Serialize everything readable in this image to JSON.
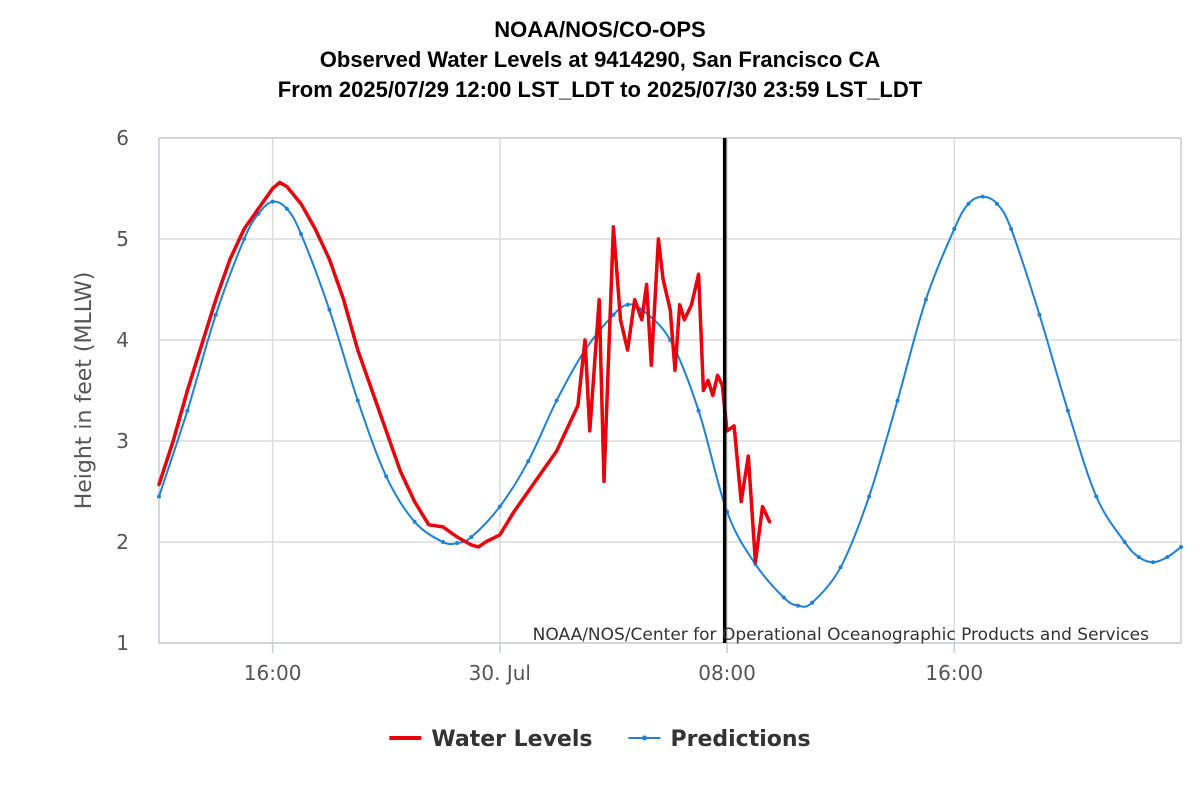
{
  "chart_data": {
    "type": "line",
    "title": [
      "NOAA/NOS/CO-OPS",
      "Observed Water Levels at 9414290, San Francisco CA",
      "From 2025/07/29 12:00 LST_LDT to 2025/07/30 23:59 LST_LDT"
    ],
    "ylabel": "Height in feet (MLLW)",
    "ylim": [
      1,
      6
    ],
    "yticks": [
      "1",
      "2",
      "3",
      "4",
      "5",
      "6"
    ],
    "xlim": [
      "2025-07-29 12:00",
      "2025-07-30 23:59"
    ],
    "xticks": [
      {
        "t": "2025-07-29 16:00",
        "label": "16:00"
      },
      {
        "t": "2025-07-30 00:00",
        "label": "30. Jul"
      },
      {
        "t": "2025-07-30 08:00",
        "label": "08:00"
      },
      {
        "t": "2025-07-30 16:00",
        "label": "16:00"
      }
    ],
    "grid": true,
    "legend_position": "bottom-center",
    "credit": "NOAA/NOS/Center for Operational Oceanographic Products and Services",
    "current_time_marker": "2025-07-30 07:55",
    "series": [
      {
        "name": "Water Levels",
        "color": "#e8000b",
        "style": "line",
        "points": [
          [
            "2025-07-29 12:00",
            2.57
          ],
          [
            "2025-07-29 12:30",
            3.0
          ],
          [
            "2025-07-29 13:00",
            3.5
          ],
          [
            "2025-07-29 13:30",
            3.95
          ],
          [
            "2025-07-29 14:00",
            4.4
          ],
          [
            "2025-07-29 14:30",
            4.8
          ],
          [
            "2025-07-29 15:00",
            5.1
          ],
          [
            "2025-07-29 15:30",
            5.3
          ],
          [
            "2025-07-29 16:00",
            5.5
          ],
          [
            "2025-07-29 16:15",
            5.56
          ],
          [
            "2025-07-29 16:30",
            5.52
          ],
          [
            "2025-07-29 17:00",
            5.35
          ],
          [
            "2025-07-29 17:30",
            5.1
          ],
          [
            "2025-07-29 18:00",
            4.8
          ],
          [
            "2025-07-29 18:30",
            4.4
          ],
          [
            "2025-07-29 19:00",
            3.9
          ],
          [
            "2025-07-29 19:30",
            3.5
          ],
          [
            "2025-07-29 20:00",
            3.1
          ],
          [
            "2025-07-29 20:30",
            2.7
          ],
          [
            "2025-07-29 21:00",
            2.4
          ],
          [
            "2025-07-29 21:30",
            2.17
          ],
          [
            "2025-07-29 22:00",
            2.15
          ],
          [
            "2025-07-29 22:30",
            2.05
          ],
          [
            "2025-07-29 23:00",
            1.97
          ],
          [
            "2025-07-29 23:15",
            1.95
          ],
          [
            "2025-07-29 23:30",
            2.0
          ],
          [
            "2025-07-30 00:00",
            2.07
          ],
          [
            "2025-07-30 00:30",
            2.3
          ],
          [
            "2025-07-30 01:00",
            2.5
          ],
          [
            "2025-07-30 01:30",
            2.7
          ],
          [
            "2025-07-30 02:00",
            2.9
          ],
          [
            "2025-07-30 02:30",
            3.2
          ],
          [
            "2025-07-30 02:45",
            3.35
          ],
          [
            "2025-07-30 03:00",
            4.0
          ],
          [
            "2025-07-30 03:10",
            3.1
          ],
          [
            "2025-07-30 03:30",
            4.4
          ],
          [
            "2025-07-30 03:40",
            2.6
          ],
          [
            "2025-07-30 04:00",
            5.12
          ],
          [
            "2025-07-30 04:15",
            4.2
          ],
          [
            "2025-07-30 04:30",
            3.9
          ],
          [
            "2025-07-30 04:45",
            4.4
          ],
          [
            "2025-07-30 05:00",
            4.2
          ],
          [
            "2025-07-30 05:10",
            4.55
          ],
          [
            "2025-07-30 05:20",
            3.75
          ],
          [
            "2025-07-30 05:35",
            5.0
          ],
          [
            "2025-07-30 05:45",
            4.6
          ],
          [
            "2025-07-30 06:00",
            4.3
          ],
          [
            "2025-07-30 06:10",
            3.7
          ],
          [
            "2025-07-30 06:20",
            4.35
          ],
          [
            "2025-07-30 06:30",
            4.2
          ],
          [
            "2025-07-30 06:45",
            4.35
          ],
          [
            "2025-07-30 07:00",
            4.65
          ],
          [
            "2025-07-30 07:10",
            3.5
          ],
          [
            "2025-07-30 07:20",
            3.6
          ],
          [
            "2025-07-30 07:30",
            3.45
          ],
          [
            "2025-07-30 07:40",
            3.65
          ],
          [
            "2025-07-30 07:50",
            3.55
          ],
          [
            "2025-07-30 08:00",
            3.1
          ],
          [
            "2025-07-30 08:15",
            3.15
          ],
          [
            "2025-07-30 08:30",
            2.4
          ],
          [
            "2025-07-30 08:45",
            2.85
          ],
          [
            "2025-07-30 09:00",
            1.8
          ],
          [
            "2025-07-30 09:15",
            2.35
          ],
          [
            "2025-07-30 09:30",
            2.2
          ]
        ]
      },
      {
        "name": "Predictions",
        "color": "#2080d8",
        "style": "line-markers",
        "points": [
          [
            "2025-07-29 12:00",
            2.45
          ],
          [
            "2025-07-29 13:00",
            3.3
          ],
          [
            "2025-07-29 14:00",
            4.25
          ],
          [
            "2025-07-29 15:00",
            5.0
          ],
          [
            "2025-07-29 15:30",
            5.25
          ],
          [
            "2025-07-29 16:00",
            5.37
          ],
          [
            "2025-07-29 16:30",
            5.3
          ],
          [
            "2025-07-29 17:00",
            5.05
          ],
          [
            "2025-07-29 18:00",
            4.3
          ],
          [
            "2025-07-29 19:00",
            3.4
          ],
          [
            "2025-07-29 20:00",
            2.65
          ],
          [
            "2025-07-29 21:00",
            2.2
          ],
          [
            "2025-07-29 22:00",
            2.0
          ],
          [
            "2025-07-29 22:30",
            1.99
          ],
          [
            "2025-07-29 23:00",
            2.05
          ],
          [
            "2025-07-30 00:00",
            2.35
          ],
          [
            "2025-07-30 01:00",
            2.8
          ],
          [
            "2025-07-30 02:00",
            3.4
          ],
          [
            "2025-07-30 03:00",
            3.9
          ],
          [
            "2025-07-30 04:00",
            4.25
          ],
          [
            "2025-07-30 04:30",
            4.35
          ],
          [
            "2025-07-30 05:00",
            4.3
          ],
          [
            "2025-07-30 06:00",
            4.0
          ],
          [
            "2025-07-30 07:00",
            3.3
          ],
          [
            "2025-07-30 08:00",
            2.3
          ],
          [
            "2025-07-30 09:00",
            1.78
          ],
          [
            "2025-07-30 10:00",
            1.45
          ],
          [
            "2025-07-30 10:30",
            1.37
          ],
          [
            "2025-07-30 11:00",
            1.4
          ],
          [
            "2025-07-30 12:00",
            1.75
          ],
          [
            "2025-07-30 13:00",
            2.45
          ],
          [
            "2025-07-30 14:00",
            3.4
          ],
          [
            "2025-07-30 15:00",
            4.4
          ],
          [
            "2025-07-30 16:00",
            5.1
          ],
          [
            "2025-07-30 16:30",
            5.35
          ],
          [
            "2025-07-30 17:00",
            5.42
          ],
          [
            "2025-07-30 17:30",
            5.35
          ],
          [
            "2025-07-30 18:00",
            5.1
          ],
          [
            "2025-07-30 19:00",
            4.25
          ],
          [
            "2025-07-30 20:00",
            3.3
          ],
          [
            "2025-07-30 21:00",
            2.45
          ],
          [
            "2025-07-30 22:00",
            2.0
          ],
          [
            "2025-07-30 22:30",
            1.85
          ],
          [
            "2025-07-30 23:00",
            1.8
          ],
          [
            "2025-07-30 23:30",
            1.85
          ],
          [
            "2025-07-30 23:59",
            1.95
          ]
        ]
      }
    ]
  }
}
